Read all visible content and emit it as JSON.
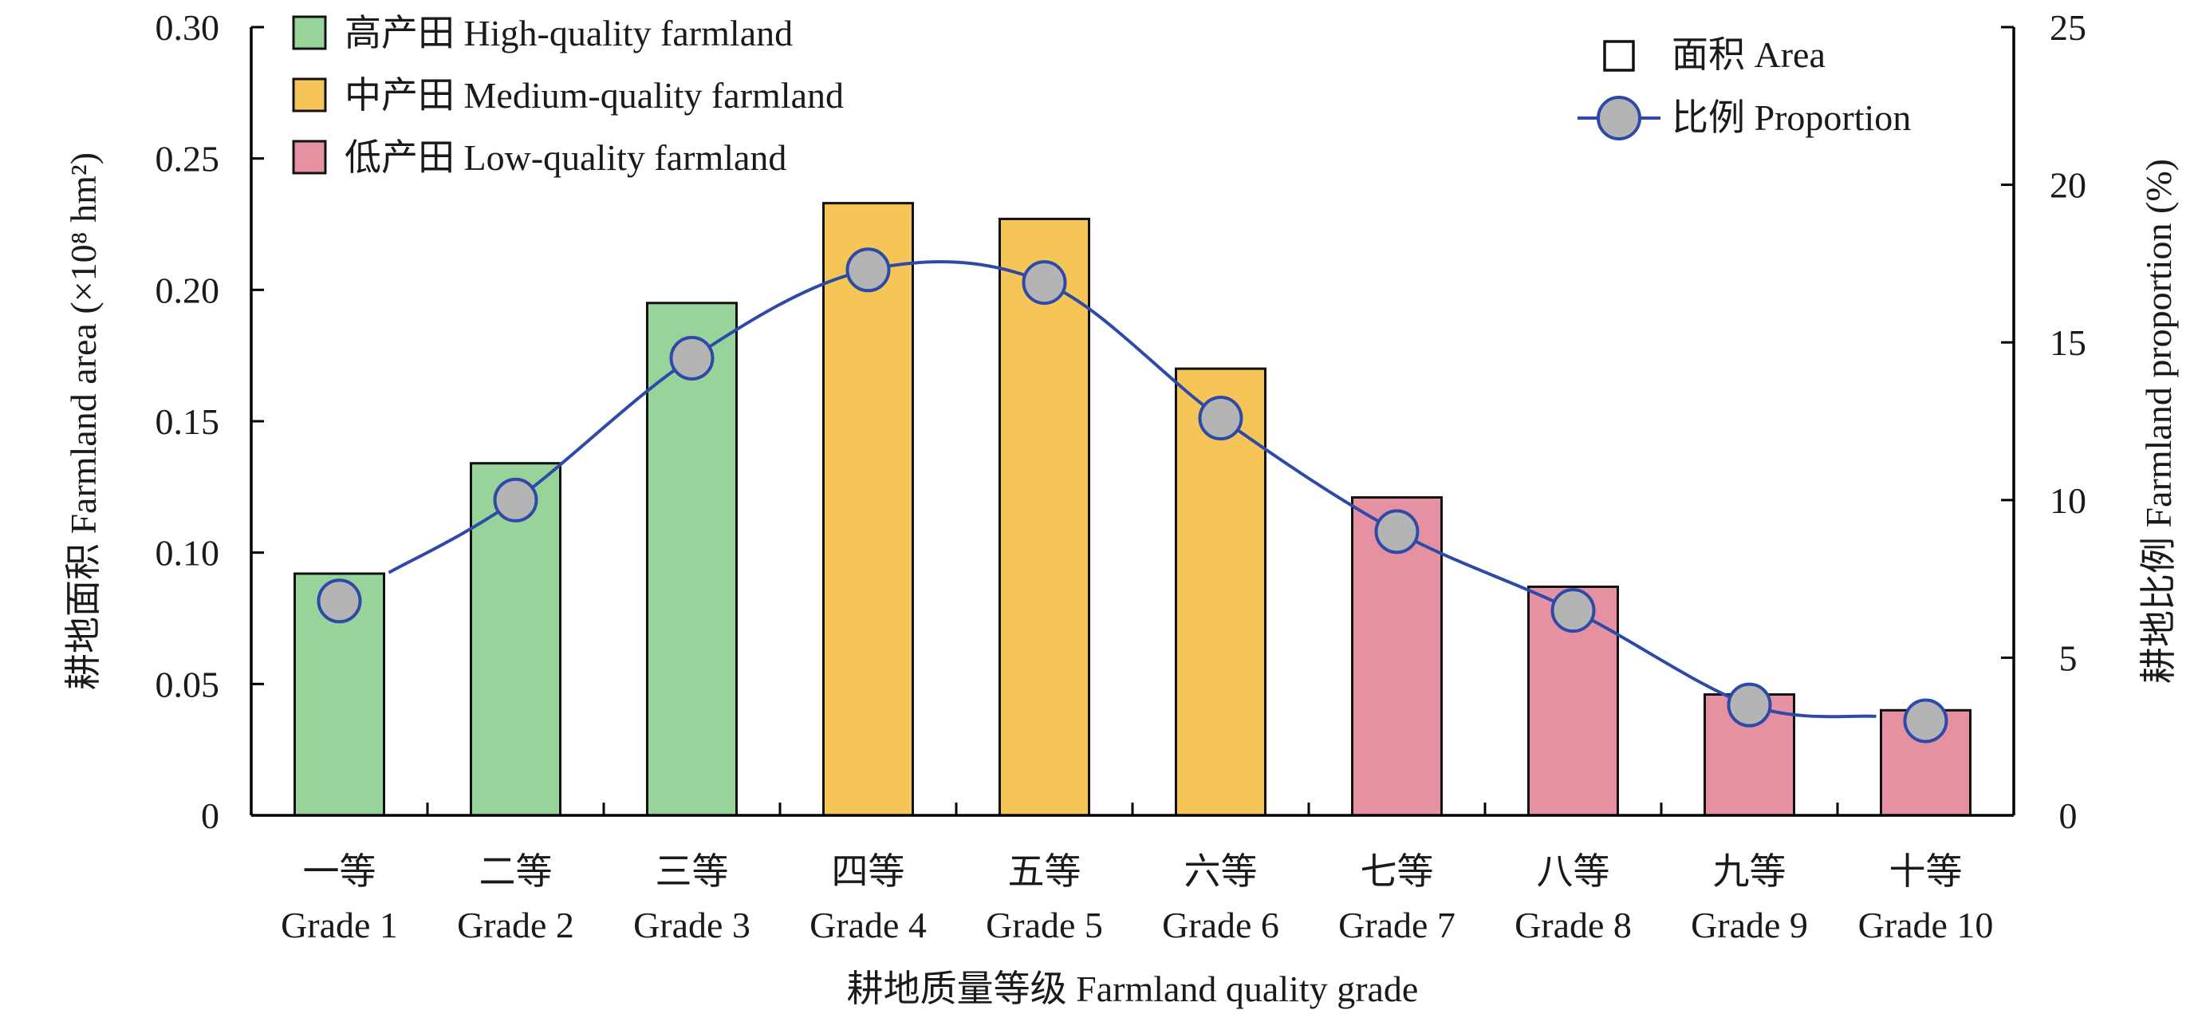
{
  "chart_data": {
    "type": "bar",
    "categories_cn": [
      "一等",
      "二等",
      "三等",
      "四等",
      "五等",
      "六等",
      "七等",
      "八等",
      "九等",
      "十等"
    ],
    "categories": [
      "Grade 1",
      "Grade 2",
      "Grade 3",
      "Grade 4",
      "Grade 5",
      "Grade 6",
      "Grade 7",
      "Grade 8",
      "Grade 9",
      "Grade 10"
    ],
    "groups": [
      "high",
      "high",
      "high",
      "medium",
      "medium",
      "medium",
      "low",
      "low",
      "low",
      "low"
    ],
    "series": [
      {
        "name": "面积 Area",
        "axis": "left",
        "kind": "bar",
        "values": [
          0.092,
          0.134,
          0.195,
          0.233,
          0.227,
          0.17,
          0.121,
          0.087,
          0.046,
          0.04
        ]
      },
      {
        "name": "比例 Proportion",
        "axis": "right",
        "kind": "line",
        "values": [
          6.8,
          10.0,
          14.5,
          17.3,
          16.9,
          12.6,
          9.0,
          6.5,
          3.5,
          3.0
        ]
      }
    ],
    "xlabel": "耕地质量等级 Farmland quality grade",
    "ylabel_left": "耕地面积 Farmland area (×10⁸ hm²)",
    "ylabel_right": "耕地比例 Farmland proportion (%)",
    "ylim_left": [
      0,
      0.3
    ],
    "ylim_right": [
      0,
      25
    ],
    "yticks_left": [
      "0",
      "0.05",
      "0.10",
      "0.15",
      "0.20",
      "0.25",
      "0.30"
    ],
    "yticks_right": [
      "0",
      "5",
      "10",
      "15",
      "20",
      "25"
    ],
    "grid": false,
    "legend_groups": [
      {
        "key": "high",
        "label": "高产田 High-quality farmland",
        "color": "#98d49a"
      },
      {
        "key": "medium",
        "label": "中产田 Medium-quality farmland",
        "color": "#f5c557"
      },
      {
        "key": "low",
        "label": "低产田 Low-quality farmland",
        "color": "#e591a1"
      }
    ],
    "legend_series": [
      {
        "label": "面积 Area",
        "marker": "square"
      },
      {
        "label": "比例 Proportion",
        "marker": "line-circle"
      }
    ],
    "legend_placement": [
      "top-left",
      "top-right"
    ],
    "colors": {
      "line": "#2e4aa8",
      "marker_fill": "#b4b4b4",
      "bar_edge": "#111111"
    }
  }
}
